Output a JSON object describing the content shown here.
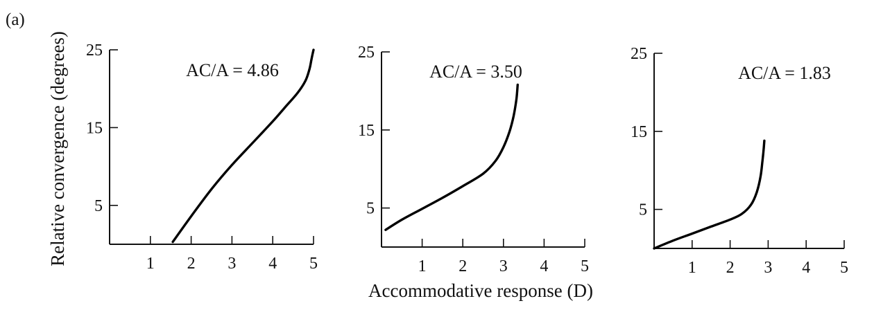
{
  "figure": {
    "panel_label": "(a)",
    "ylabel": "Relative convergence (degrees)",
    "xlabel": "Accommodative response (D)"
  },
  "chart_data": [
    {
      "type": "line",
      "annotation": "AC/A = 4.86",
      "xlim": [
        0,
        5
      ],
      "ylim": [
        0,
        25
      ],
      "xticks": [
        "1",
        "2",
        "3",
        "4",
        "5"
      ],
      "yticks": [
        {
          "value": 5,
          "label": "5"
        },
        {
          "value": 15,
          "label": "15"
        },
        {
          "value": 25,
          "label": "25"
        }
      ],
      "series": [
        {
          "x": [
            1.55,
            2.0,
            2.5,
            3.0,
            3.5,
            4.0,
            4.3,
            4.6,
            4.8,
            4.9,
            4.95,
            5.0
          ],
          "y": [
            0.3,
            3.6,
            7.1,
            10.2,
            13.0,
            15.8,
            17.6,
            19.4,
            21.0,
            22.5,
            23.8,
            25.0
          ]
        }
      ]
    },
    {
      "type": "line",
      "annotation": "AC/A = 3.50",
      "xlim": [
        0,
        5
      ],
      "ylim": [
        0,
        25
      ],
      "xticks": [
        "1",
        "2",
        "3",
        "4",
        "5"
      ],
      "yticks": [
        {
          "value": 5,
          "label": "5"
        },
        {
          "value": 15,
          "label": "15"
        },
        {
          "value": 25,
          "label": "25"
        }
      ],
      "series": [
        {
          "x": [
            0.1,
            0.5,
            1.0,
            1.5,
            2.0,
            2.5,
            2.8,
            3.0,
            3.15,
            3.25,
            3.32,
            3.35
          ],
          "y": [
            2.2,
            3.5,
            4.9,
            6.3,
            7.8,
            9.4,
            11.0,
            12.8,
            14.8,
            16.8,
            19.0,
            20.8
          ]
        }
      ]
    },
    {
      "type": "line",
      "annotation": "AC/A = 1.83",
      "xlim": [
        0,
        5
      ],
      "ylim": [
        0,
        25
      ],
      "xticks": [
        "1",
        "2",
        "3",
        "4",
        "5"
      ],
      "yticks": [
        {
          "value": 5,
          "label": "5"
        },
        {
          "value": 15,
          "label": "15"
        },
        {
          "value": 25,
          "label": "25"
        }
      ],
      "series": [
        {
          "x": [
            0.0,
            0.5,
            1.0,
            1.5,
            2.0,
            2.3,
            2.55,
            2.7,
            2.8,
            2.85,
            2.88,
            2.9
          ],
          "y": [
            0.0,
            1.0,
            1.9,
            2.8,
            3.7,
            4.4,
            5.6,
            7.2,
            9.2,
            11.2,
            12.6,
            13.8
          ]
        }
      ]
    }
  ]
}
